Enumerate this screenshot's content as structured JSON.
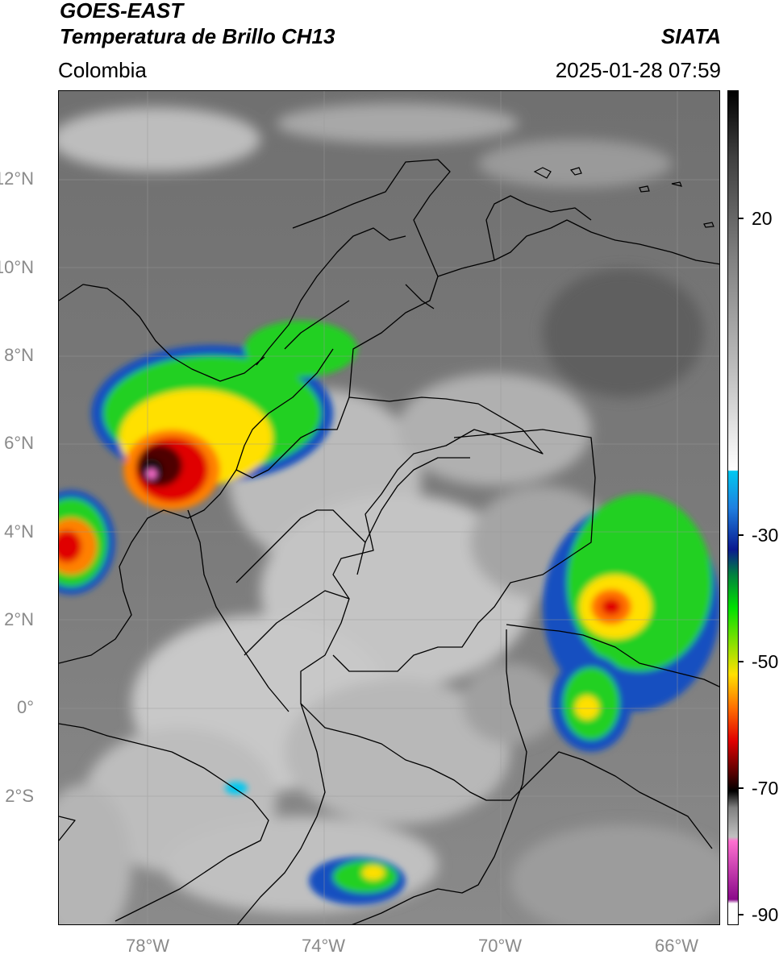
{
  "header": {
    "satellite": "GOES-EAST",
    "product": "Temperatura de Brillo CH13",
    "region": "Colombia",
    "agency": "SIATA",
    "datetime": "2025-01-28 07:59"
  },
  "axes": {
    "lat_labels": [
      "12°N",
      "10°N",
      "8°N",
      "6°N",
      "4°N",
      "2°N",
      "0°",
      "2°S"
    ],
    "lon_labels": [
      "78°W",
      "74°W",
      "70°W",
      "66°W"
    ]
  },
  "colorbar": {
    "ticks": [
      "20",
      "-30",
      "-50",
      "-70",
      "-90"
    ],
    "gray_color": "#808080",
    "accent_colors": [
      "#00c8f0",
      "#0a1a90",
      "#00e000",
      "#ffe000",
      "#ff7000",
      "#e00000",
      "#500000",
      "#000000",
      "#ff70d0",
      "#8a0a8a"
    ]
  }
}
